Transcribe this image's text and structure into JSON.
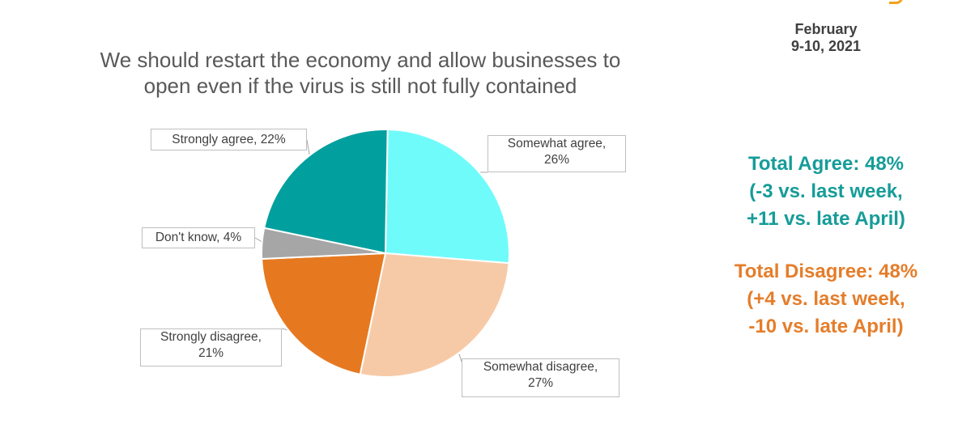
{
  "header": {
    "date_line1": "February",
    "date_line2": "9-10, 2021"
  },
  "summary": {
    "agree": {
      "line1": "Total Agree: 48%",
      "line2": "(-3 vs. last week,",
      "line3": "+11 vs. late April)"
    },
    "disagree": {
      "line1": "Total Disagree: 48%",
      "line2": "(+4 vs. last week,",
      "line3": "-10 vs. late April)"
    }
  },
  "colors": {
    "agree_text": "#169c99",
    "disagree_text": "#e57d2a",
    "title_text": "#595959",
    "accent_mark": "#f3a01c"
  },
  "chart_data": {
    "type": "pie",
    "title_line1": "We should restart the economy and allow businesses to",
    "title_line2": "open even if the virus is still not fully contained",
    "slices": [
      {
        "label": "Somewhat agree",
        "value": 26,
        "label_line1": "Somewhat agree,",
        "label_line2": "26%",
        "color": "#70fbfb"
      },
      {
        "label": "Somewhat disagree",
        "value": 27,
        "label_line1": "Somewhat disagree,",
        "label_line2": "27%",
        "color": "#f7caa7"
      },
      {
        "label": "Strongly disagree",
        "value": 21,
        "label_line1": "Strongly disagree,",
        "label_line2": "21%",
        "color": "#e67920"
      },
      {
        "label": "Don't know",
        "value": 4,
        "label_line1": "Don't know, 4%",
        "label_line2": "",
        "color": "#a6a6a6"
      },
      {
        "label": "Strongly agree",
        "value": 22,
        "label_line1": "Strongly agree, 22%",
        "label_line2": "",
        "color": "#01a09e"
      }
    ]
  }
}
